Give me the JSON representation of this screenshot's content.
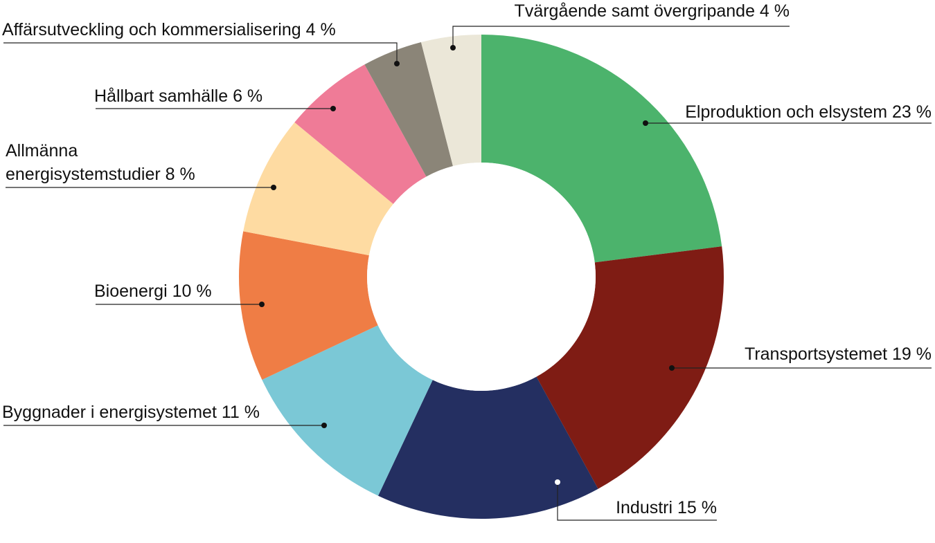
{
  "chart_data": {
    "type": "pie",
    "donut": true,
    "title": "",
    "slices": [
      {
        "label": "Elproduktion och elsystem 23 %",
        "value": 23,
        "color": "#4cb36c",
        "dot_color": "#111111"
      },
      {
        "label": "Transportsystemet 19 %",
        "value": 19,
        "color": "#7f1c14",
        "dot_color": "#111111"
      },
      {
        "label": "Industri 15 %",
        "value": 15,
        "color": "#242f61",
        "dot_color": "#ffffff"
      },
      {
        "label": "Byggnader i energisystemet 11 %",
        "value": 11,
        "color": "#7bc8d6",
        "dot_color": "#111111"
      },
      {
        "label": "Bioenergi 10 %",
        "value": 10,
        "color": "#ef7d45",
        "dot_color": "#111111"
      },
      {
        "label": "Allmänna energisystemstudier 8 %",
        "label_lines": [
          "Allmänna",
          "energisystemstudier 8 %"
        ],
        "value": 8,
        "color": "#fedba2",
        "dot_color": "#111111"
      },
      {
        "label": "Hållbart samhälle 6 %",
        "value": 6,
        "color": "#ef7b97",
        "dot_color": "#111111"
      },
      {
        "label": "Affärsutveckling och kommersialisering 4 %",
        "value": 4,
        "color": "#8b8578",
        "dot_color": "#111111"
      },
      {
        "label": "Tvärgående samt övergripande 4 %",
        "value": 4,
        "color": "#ebe7d8",
        "dot_color": "#111111"
      }
    ],
    "start": "12 o'clock",
    "direction": "clockwise",
    "legend": "callout labels with leader lines"
  }
}
